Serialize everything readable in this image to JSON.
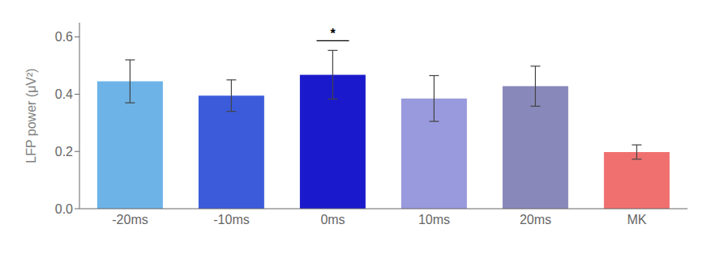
{
  "chart_data": {
    "type": "bar",
    "categories": [
      "-20ms",
      "-10ms",
      "0ms",
      "10ms",
      "20ms",
      "MK"
    ],
    "values": [
      0.445,
      0.395,
      0.468,
      0.385,
      0.428,
      0.198
    ],
    "errors": [
      0.075,
      0.055,
      0.085,
      0.08,
      0.07,
      0.025
    ],
    "colors": [
      "#6db3e8",
      "#3b5bdb",
      "#1a1acc",
      "#9999dd",
      "#8888bb",
      "#f07070"
    ],
    "ylabel": "LFP power (μV²)",
    "ylim": [
      0,
      0.65
    ],
    "yticks": [
      {
        "value": 0,
        "label": "0.0"
      },
      0.2,
      0.4,
      0.6
    ],
    "grid": false,
    "annotations": [
      {
        "text": "*",
        "x": "0ms"
      }
    ]
  }
}
